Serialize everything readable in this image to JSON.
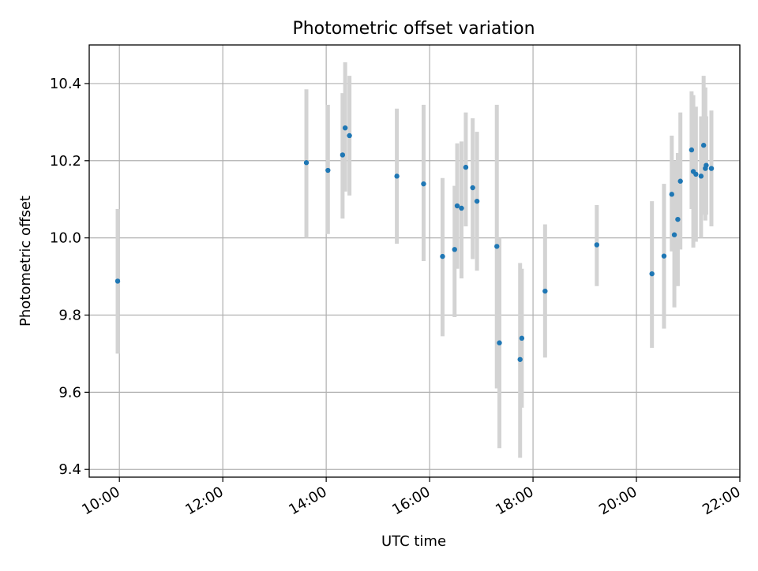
{
  "chart_data": {
    "type": "scatter",
    "title": "Photometric offset variation",
    "xlabel": "UTC time",
    "ylabel": "Photometric offset",
    "x_unit": "UTC time (HH:MM)",
    "xlim": [
      "09:25",
      "22:00"
    ],
    "ylim": [
      9.38,
      10.5
    ],
    "x_ticks": [
      "10:00",
      "12:00",
      "14:00",
      "16:00",
      "18:00",
      "20:00",
      "22:00"
    ],
    "y_ticks": [
      9.4,
      9.6,
      9.8,
      10.0,
      10.2,
      10.4
    ],
    "grid": true,
    "errorbar_color": "#d3d3d3",
    "point_color": "#1f77b4",
    "points": [
      {
        "x": "09:58",
        "y": 9.888,
        "lo": 9.7,
        "hi": 10.075
      },
      {
        "x": "13:37",
        "y": 10.195,
        "lo": 10.0,
        "hi": 10.385
      },
      {
        "x": "14:02",
        "y": 10.175,
        "lo": 10.01,
        "hi": 10.345
      },
      {
        "x": "14:19",
        "y": 10.215,
        "lo": 10.05,
        "hi": 10.375
      },
      {
        "x": "14:22",
        "y": 10.285,
        "lo": 10.12,
        "hi": 10.455
      },
      {
        "x": "14:27",
        "y": 10.265,
        "lo": 10.11,
        "hi": 10.42
      },
      {
        "x": "15:22",
        "y": 10.16,
        "lo": 9.985,
        "hi": 10.335
      },
      {
        "x": "15:53",
        "y": 10.14,
        "lo": 9.94,
        "hi": 10.345
      },
      {
        "x": "16:15",
        "y": 9.952,
        "lo": 9.745,
        "hi": 10.155
      },
      {
        "x": "16:29",
        "y": 9.97,
        "lo": 9.795,
        "hi": 10.135
      },
      {
        "x": "16:32",
        "y": 10.083,
        "lo": 9.92,
        "hi": 10.245
      },
      {
        "x": "16:37",
        "y": 10.077,
        "lo": 9.895,
        "hi": 10.25
      },
      {
        "x": "16:42",
        "y": 10.183,
        "lo": 10.03,
        "hi": 10.325
      },
      {
        "x": "16:50",
        "y": 10.13,
        "lo": 9.945,
        "hi": 10.31
      },
      {
        "x": "16:55",
        "y": 10.095,
        "lo": 9.915,
        "hi": 10.275
      },
      {
        "x": "17:18",
        "y": 9.978,
        "lo": 9.61,
        "hi": 10.345
      },
      {
        "x": "17:21",
        "y": 9.728,
        "lo": 9.455,
        "hi": 10.0
      },
      {
        "x": "17:45",
        "y": 9.685,
        "lo": 9.43,
        "hi": 9.935
      },
      {
        "x": "17:47",
        "y": 9.74,
        "lo": 9.56,
        "hi": 9.92
      },
      {
        "x": "18:14",
        "y": 9.862,
        "lo": 9.69,
        "hi": 10.035
      },
      {
        "x": "19:14",
        "y": 9.982,
        "lo": 9.875,
        "hi": 10.085
      },
      {
        "x": "20:18",
        "y": 9.907,
        "lo": 9.715,
        "hi": 10.095
      },
      {
        "x": "20:32",
        "y": 9.953,
        "lo": 9.765,
        "hi": 10.14
      },
      {
        "x": "20:41",
        "y": 10.113,
        "lo": 9.965,
        "hi": 10.265
      },
      {
        "x": "20:44",
        "y": 10.008,
        "lo": 9.82,
        "hi": 10.2
      },
      {
        "x": "20:48",
        "y": 10.048,
        "lo": 9.875,
        "hi": 10.22
      },
      {
        "x": "20:51",
        "y": 10.147,
        "lo": 9.97,
        "hi": 10.325
      },
      {
        "x": "21:04",
        "y": 10.228,
        "lo": 10.075,
        "hi": 10.38
      },
      {
        "x": "21:06",
        "y": 10.172,
        "lo": 9.975,
        "hi": 10.37
      },
      {
        "x": "21:09",
        "y": 10.165,
        "lo": 9.99,
        "hi": 10.34
      },
      {
        "x": "21:15",
        "y": 10.16,
        "lo": 10.0,
        "hi": 10.315
      },
      {
        "x": "21:18",
        "y": 10.24,
        "lo": 10.06,
        "hi": 10.42
      },
      {
        "x": "21:20",
        "y": 10.18,
        "lo": 10.045,
        "hi": 10.39
      },
      {
        "x": "21:21",
        "y": 10.188,
        "lo": 10.06,
        "hi": 10.315
      },
      {
        "x": "21:27",
        "y": 10.18,
        "lo": 10.03,
        "hi": 10.33
      }
    ]
  }
}
